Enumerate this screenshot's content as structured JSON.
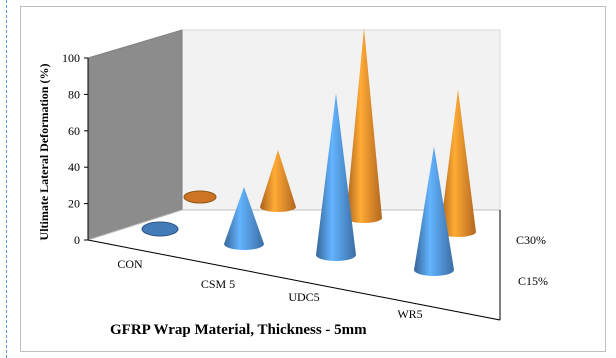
{
  "chart_data": {
    "type": "3d-cone",
    "categories": [
      "CON",
      "CSM 5",
      "UDC5",
      "WR5"
    ],
    "series": [
      {
        "name": "C15%",
        "values": [
          0,
          30,
          85,
          65
        ],
        "color": "#4f90d9"
      },
      {
        "name": "C30%",
        "values": [
          0,
          30,
          100,
          75
        ],
        "color": "#f0892a"
      }
    ],
    "ylabel": "Ultimate Lateral Deformation (%)",
    "xlabel": "GFRP Wrap Material, Thickness - 5mm",
    "ylim": [
      0,
      100
    ],
    "yticks": [
      "0",
      "20",
      "40",
      "60",
      "80",
      "100"
    ],
    "grid": false
  }
}
